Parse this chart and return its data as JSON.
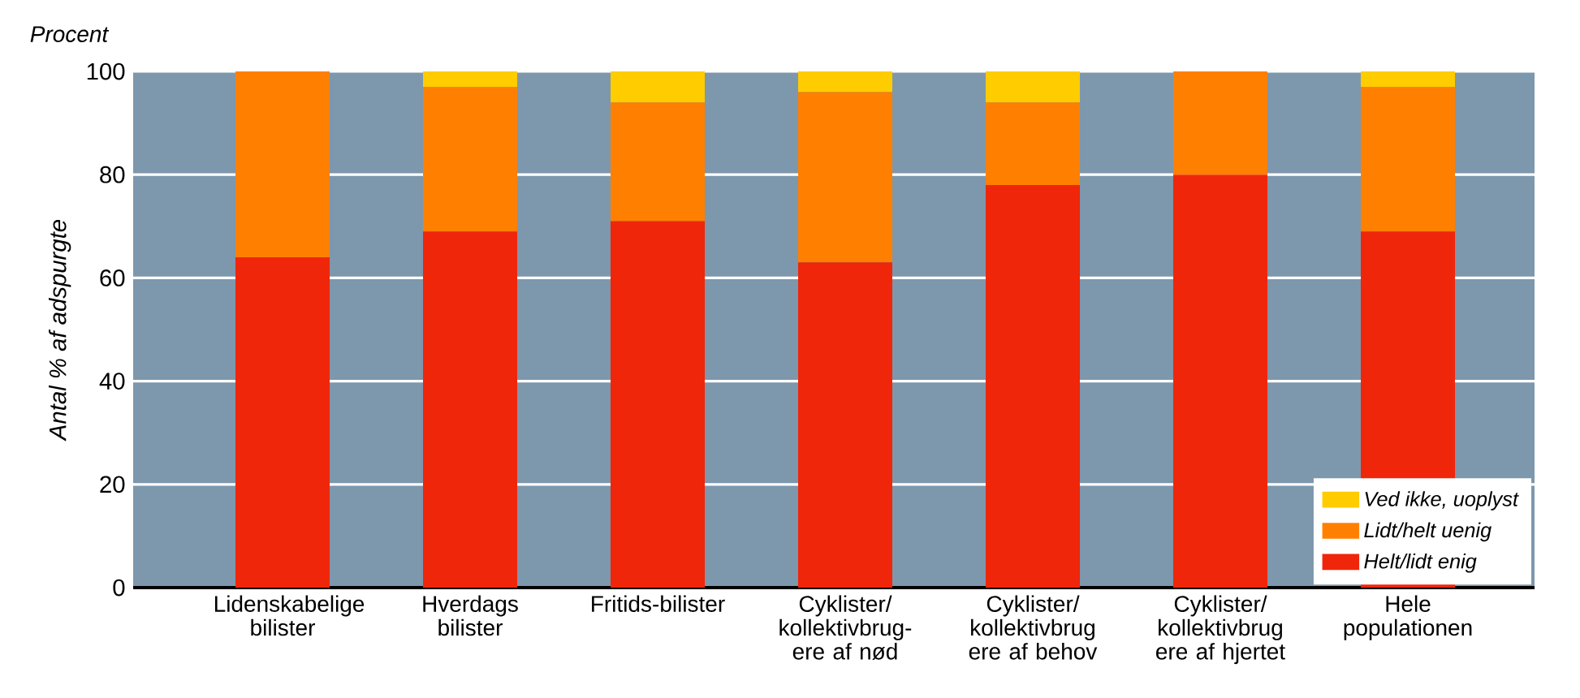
{
  "chart_data": {
    "type": "bar",
    "stacked": true,
    "ylabel": "Antal % af adspurgte",
    "annotations": [
      "Procent"
    ],
    "categories": [
      "Lidenskabelige bilister",
      "Hverdags bilister",
      "Fritids-bilister",
      "Cyklister/ kollektivbrug-ere af nød",
      "Cyklister/ kollektivbrug ere af behov",
      "Cyklister/ kollektivbrug ere af hjertet",
      "Hele populationen"
    ],
    "series": [
      {
        "name": "Helt/lidt enig",
        "color": "#f0260a",
        "values": [
          64,
          69,
          71,
          63,
          78,
          80,
          69
        ]
      },
      {
        "name": "Lidt/helt uenig",
        "color": "#ff8000",
        "values": [
          36,
          28,
          23,
          33,
          16,
          20,
          28
        ]
      },
      {
        "name": "Ved ikke, uoplyst",
        "color": "#ffcc00",
        "values": [
          0,
          3,
          6,
          4,
          6,
          0,
          3
        ]
      }
    ],
    "ylim": [
      0,
      100
    ],
    "yticks": [
      0,
      20,
      40,
      60,
      80,
      100
    ],
    "grid": "y",
    "legend": "bottom right"
  }
}
